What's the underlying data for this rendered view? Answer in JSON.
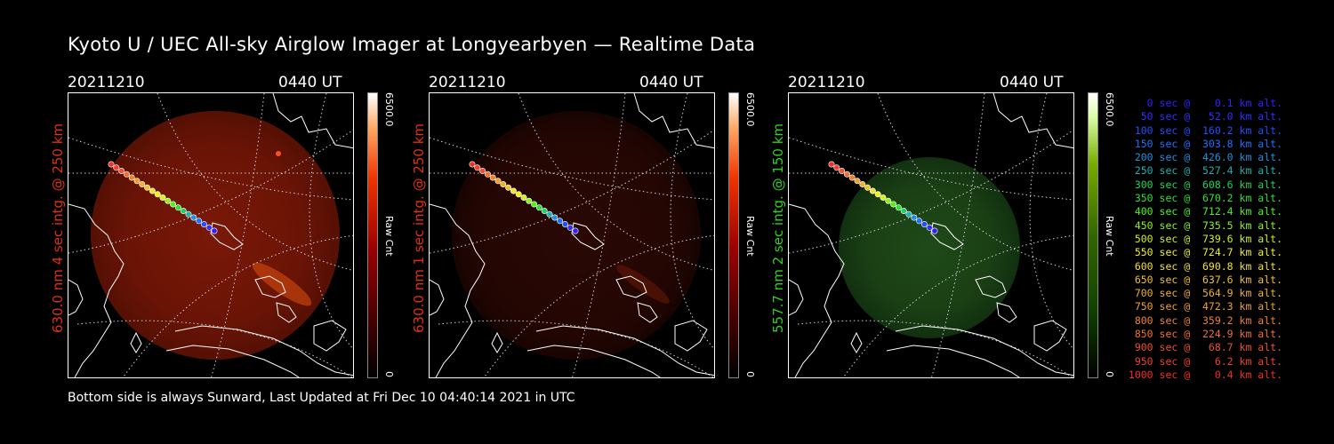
{
  "title": "Kyoto U / UEC All-sky Airglow Imager at Longyearbyen — Realtime Data",
  "panels": [
    {
      "date": "20211210",
      "time": "0440 UT",
      "side_label": "630.0 nm 4 sec intg. @ 250 km",
      "label_color": "#e03010",
      "colorbar_max": "6500.0",
      "colorbar_min": "0",
      "colorbar_unit": "Raw Cnt",
      "colormap": "red"
    },
    {
      "date": "20211210",
      "time": "0440 UT",
      "side_label": "630.0 nm 1 sec intg. @ 250 km",
      "label_color": "#e03010",
      "colorbar_max": "6500.0",
      "colorbar_min": "0",
      "colorbar_unit": "Raw Cnt",
      "colormap": "red"
    },
    {
      "date": "20211210",
      "time": "0440 UT",
      "side_label": "557.7 nm 2 sec intg. @ 150 km",
      "label_color": "#30d020",
      "colorbar_max": "6500.0",
      "colorbar_min": "0",
      "colorbar_unit": "Raw Cnt",
      "colormap": "green"
    }
  ],
  "footer": "Bottom side is always Sunward, Last Updated at Fri Dec 10 04:40:14 2021 in UTC",
  "trajectory_legend": [
    {
      "text": "0 sec @    0.1 km alt.",
      "color": "#3020ff"
    },
    {
      "text": "50 sec @   52.0 km alt.",
      "color": "#3030ff"
    },
    {
      "text": "100 sec @  160.2 km alt.",
      "color": "#2050ff"
    },
    {
      "text": "150 sec @  303.8 km alt.",
      "color": "#2070ff"
    },
    {
      "text": "200 sec @  426.0 km alt.",
      "color": "#2090e0"
    },
    {
      "text": "250 sec @  527.4 km alt.",
      "color": "#20b0b0"
    },
    {
      "text": "300 sec @  608.6 km alt.",
      "color": "#20d060"
    },
    {
      "text": "350 sec @  670.2 km alt.",
      "color": "#30e030"
    },
    {
      "text": "400 sec @  712.4 km alt.",
      "color": "#50f020"
    },
    {
      "text": "450 sec @  735.5 km alt.",
      "color": "#90f020"
    },
    {
      "text": "500 sec @  739.6 km alt.",
      "color": "#d0f020"
    },
    {
      "text": "550 sec @  724.7 km alt.",
      "color": "#f0f020"
    },
    {
      "text": "600 sec @  690.8 km alt.",
      "color": "#f0e030"
    },
    {
      "text": "650 sec @  637.6 km alt.",
      "color": "#f0c030"
    },
    {
      "text": "700 sec @  564.9 km alt.",
      "color": "#f0b030"
    },
    {
      "text": "750 sec @  472.3 km alt.",
      "color": "#f0a030"
    },
    {
      "text": "800 sec @  359.2 km alt.",
      "color": "#f08030"
    },
    {
      "text": "850 sec @  224.9 km alt.",
      "color": "#f07030"
    },
    {
      "text": "900 sec @   68.7 km alt.",
      "color": "#f05030"
    },
    {
      "text": "950 sec @    6.2 km alt.",
      "color": "#f04030"
    },
    {
      "text": "1000 sec @    0.4 km alt.",
      "color": "#f03020"
    }
  ]
}
